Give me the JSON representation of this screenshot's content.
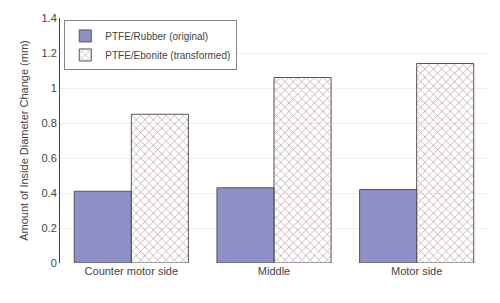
{
  "chart_data": {
    "type": "bar",
    "categories": [
      "Counter motor side",
      "Middle",
      "Motor side"
    ],
    "series": [
      {
        "name": "PTFE/Rubber (original)",
        "color": "#9090c8",
        "values": [
          0.41,
          0.43,
          0.42
        ]
      },
      {
        "name": "PTFE/Ebonite (transformed)",
        "color": "#ffffff",
        "values": [
          0.85,
          1.06,
          1.14
        ]
      }
    ],
    "ylabel": "Amount of Inside Diameter Change (mm)",
    "ylim": [
      0.0,
      1.4
    ],
    "yticks": [
      0.0,
      0.2,
      0.4,
      0.6,
      0.8,
      1.0,
      1.2,
      1.4
    ],
    "grid": true,
    "legend": "upper left"
  }
}
